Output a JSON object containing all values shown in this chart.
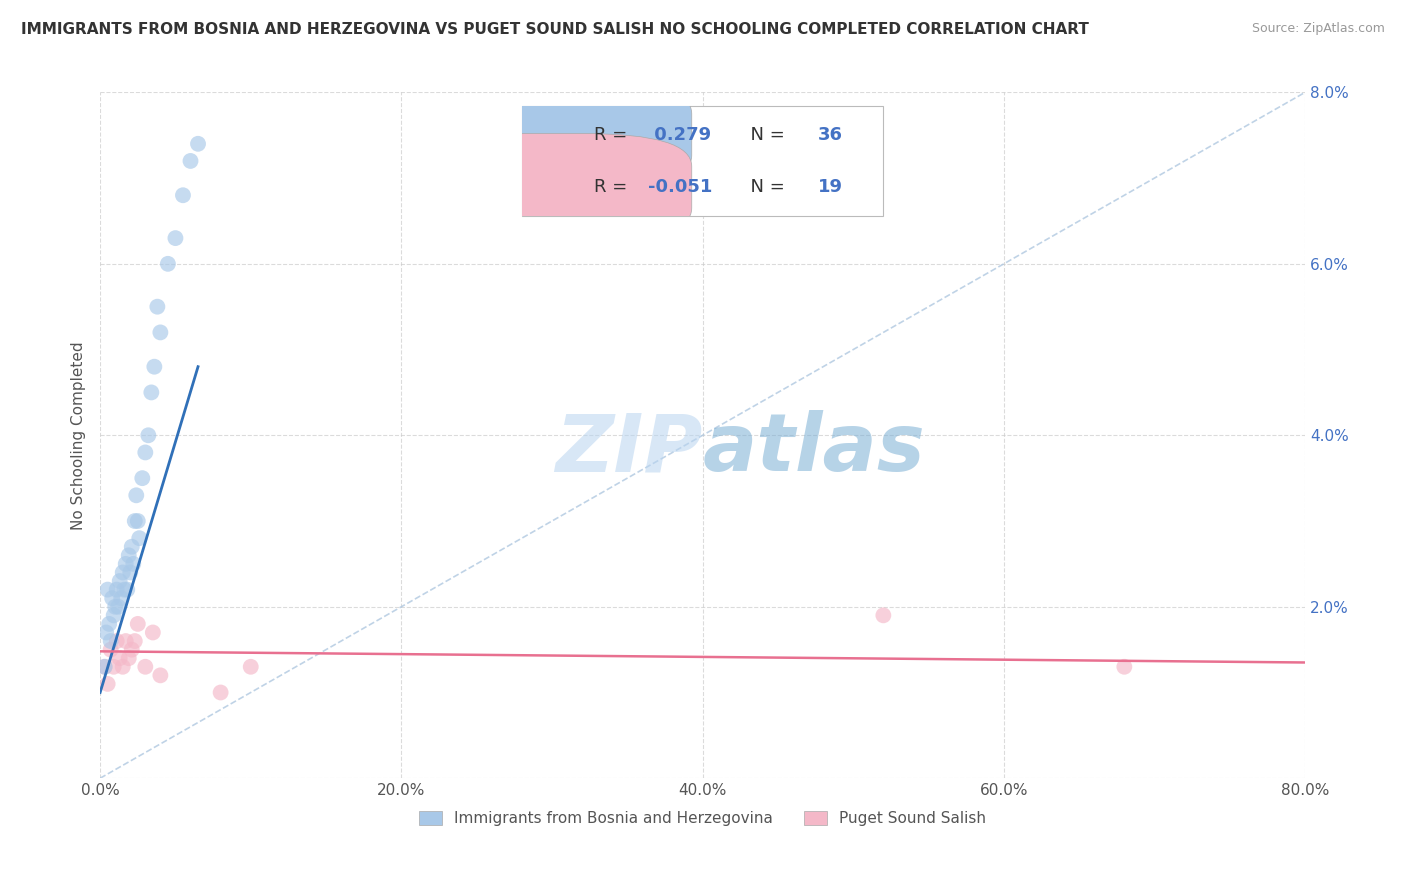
{
  "title": "IMMIGRANTS FROM BOSNIA AND HERZEGOVINA VS PUGET SOUND SALISH NO SCHOOLING COMPLETED CORRELATION CHART",
  "source": "Source: ZipAtlas.com",
  "ylabel": "No Schooling Completed",
  "watermark_zip": "ZIP",
  "watermark_atlas": "atlas",
  "legend_label1": "Immigrants from Bosnia and Herzegovina",
  "legend_label2": "Puget Sound Salish",
  "r1": 0.279,
  "n1": 36,
  "r2": -0.051,
  "n2": 19,
  "blue_color": "#a8c8e8",
  "pink_color": "#f4b8c8",
  "blue_line_color": "#3070b8",
  "pink_line_color": "#e87090",
  "diag_line_color": "#b0c8e0",
  "background_color": "#ffffff",
  "grid_color": "#cccccc",
  "xlim": [
    0.0,
    0.8
  ],
  "ylim": [
    0.0,
    0.08
  ],
  "xticks": [
    0.0,
    0.2,
    0.4,
    0.6,
    0.8
  ],
  "yticks": [
    0.0,
    0.02,
    0.04,
    0.06,
    0.08
  ],
  "xtick_labels": [
    "0.0%",
    "20.0%",
    "40.0%",
    "60.0%",
    "80.0%"
  ],
  "ytick_labels": [
    "",
    "2.0%",
    "4.0%",
    "6.0%",
    "8.0%"
  ],
  "blue_x": [
    0.003,
    0.004,
    0.005,
    0.006,
    0.007,
    0.008,
    0.009,
    0.01,
    0.011,
    0.012,
    0.013,
    0.014,
    0.015,
    0.016,
    0.017,
    0.018,
    0.019,
    0.02,
    0.021,
    0.022,
    0.023,
    0.024,
    0.025,
    0.026,
    0.028,
    0.03,
    0.032,
    0.034,
    0.036,
    0.038,
    0.04,
    0.045,
    0.05,
    0.055,
    0.06,
    0.065
  ],
  "blue_y": [
    0.013,
    0.017,
    0.022,
    0.018,
    0.016,
    0.021,
    0.019,
    0.02,
    0.022,
    0.02,
    0.023,
    0.021,
    0.024,
    0.022,
    0.025,
    0.022,
    0.026,
    0.024,
    0.027,
    0.025,
    0.03,
    0.033,
    0.03,
    0.028,
    0.035,
    0.038,
    0.04,
    0.045,
    0.048,
    0.055,
    0.052,
    0.06,
    0.063,
    0.068,
    0.072,
    0.074
  ],
  "pink_x": [
    0.003,
    0.005,
    0.007,
    0.009,
    0.011,
    0.013,
    0.015,
    0.017,
    0.019,
    0.021,
    0.023,
    0.025,
    0.03,
    0.035,
    0.04,
    0.08,
    0.1,
    0.52,
    0.68
  ],
  "pink_y": [
    0.013,
    0.011,
    0.015,
    0.013,
    0.016,
    0.014,
    0.013,
    0.016,
    0.014,
    0.015,
    0.016,
    0.018,
    0.013,
    0.017,
    0.012,
    0.01,
    0.013,
    0.019,
    0.013
  ]
}
